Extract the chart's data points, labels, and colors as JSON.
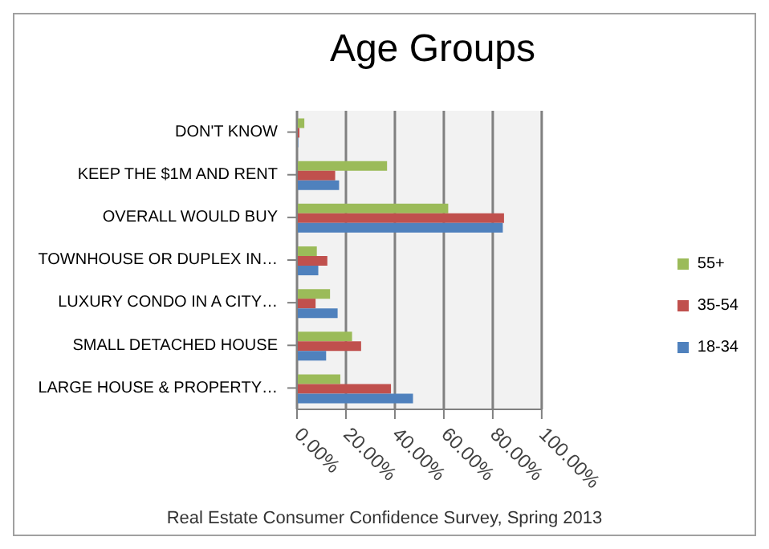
{
  "chart_data": {
    "type": "bar",
    "orientation": "horizontal",
    "title": "Age Groups",
    "categories": [
      "DON'T KNOW",
      "KEEP THE $1M AND RENT",
      "OVERALL WOULD BUY",
      "TOWNHOUSE  OR DUPLEX IN…",
      "LUXURY CONDO  IN A CITY…",
      "SMALL DETACHED  HOUSE",
      "LARGE HOUSE  & PROPERTY…"
    ],
    "series": [
      {
        "name": "55+",
        "color": "#9bbb59",
        "values": [
          3,
          36.8,
          61.8,
          8.1,
          13.5,
          22.5,
          17.7
        ]
      },
      {
        "name": "35-54",
        "color": "#c0504d",
        "values": [
          1,
          15.6,
          84.6,
          12.4,
          7.6,
          26.2,
          38.4
        ]
      },
      {
        "name": "18-34",
        "color": "#4f81bd",
        "values": [
          0.5,
          17.2,
          84.1,
          8.7,
          16.6,
          11.9,
          47.4
        ]
      }
    ],
    "xlim": [
      0,
      100
    ],
    "xticks": [
      {
        "value": 0,
        "label": "0.00%"
      },
      {
        "value": 20,
        "label": "20.00%"
      },
      {
        "value": 40,
        "label": "40.00%"
      },
      {
        "value": 60,
        "label": "60.00%"
      },
      {
        "value": 80,
        "label": "80.00%"
      },
      {
        "value": 100,
        "label": "100.00%"
      }
    ],
    "grid": "x",
    "legend": "right",
    "annotations": [
      "Real Estate Consumer Confidence Survey, Spring 2013"
    ]
  }
}
